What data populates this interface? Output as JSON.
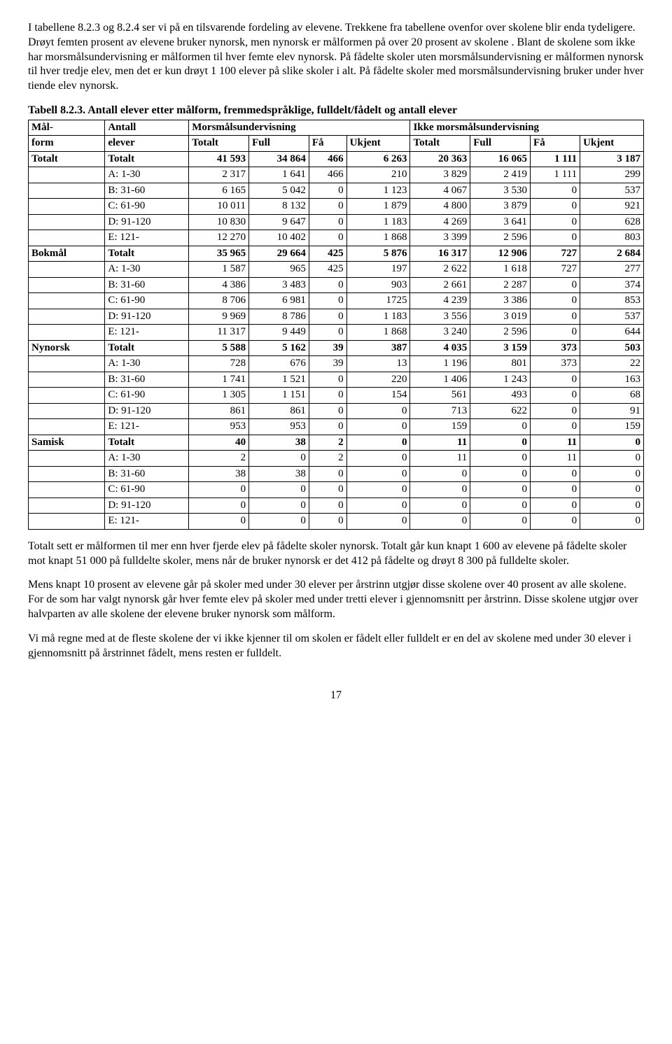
{
  "para1": "I tabellene  8.2.3 og 8.2.4 ser vi på en tilsvarende fordeling av elevene. Trekkene fra tabellene ovenfor over skolene blir enda tydeligere. Drøyt femten prosent av elevene bruker nynorsk, men nynorsk er målformen på over 20 prosent av skolene . Blant de skolene som ikke har morsmålsundervisning er målformen til hver femte elev nynorsk. På fådelte skoler uten morsmålsundervisning er målformen nynorsk til hver tredje elev, men det er kun drøyt 1 100 elever på slike skoler i alt. På fådelte skoler med morsmålsundervisning bruker under hver tiende elev nynorsk.",
  "tableCaption": "Tabell 8.2.3. Antall elever etter målform, fremmedspråklige, fulldelt/fådelt og antall elever",
  "header": {
    "mal": "Mål-",
    "antall": "Antall",
    "mors": "Morsmålsundervisning",
    "ikke": "Ikke morsmålsundervisning",
    "form": "form",
    "elever": "elever",
    "totalt": "Totalt",
    "full": "Full",
    "fa": "Få",
    "ukjent": "Ukjent"
  },
  "groups": [
    {
      "label": "Totalt",
      "rows": [
        {
          "r": "Totalt",
          "c": [
            "41 593",
            "34 864",
            "466",
            "6 263",
            "20 363",
            "16 065",
            "1 111",
            "3 187"
          ]
        },
        {
          "r": "A: 1-30",
          "c": [
            "2 317",
            "1 641",
            "466",
            "210",
            "3 829",
            "2 419",
            "1 111",
            "299"
          ]
        },
        {
          "r": "B: 31-60",
          "c": [
            "6 165",
            "5 042",
            "0",
            "1 123",
            "4 067",
            "3 530",
            "0",
            "537"
          ]
        },
        {
          "r": "C: 61-90",
          "c": [
            "10 011",
            "8 132",
            "0",
            "1 879",
            "4 800",
            "3 879",
            "0",
            "921"
          ]
        },
        {
          "r": "D: 91-120",
          "c": [
            "10 830",
            "9 647",
            "0",
            "1 183",
            "4 269",
            "3 641",
            "0",
            "628"
          ]
        },
        {
          "r": "E: 121-",
          "c": [
            "12 270",
            "10 402",
            "0",
            "1 868",
            "3 399",
            "2 596",
            "0",
            "803"
          ]
        }
      ]
    },
    {
      "label": "Bokmål",
      "rows": [
        {
          "r": "Totalt",
          "c": [
            "35 965",
            "29 664",
            "425",
            "5 876",
            "16 317",
            "12 906",
            "727",
            "2 684"
          ]
        },
        {
          "r": "A: 1-30",
          "c": [
            "1 587",
            "965",
            "425",
            "197",
            "2 622",
            "1 618",
            "727",
            "277"
          ]
        },
        {
          "r": "B: 31-60",
          "c": [
            "4 386",
            "3 483",
            "0",
            "903",
            "2 661",
            "2 287",
            "0",
            "374"
          ]
        },
        {
          "r": "C: 61-90",
          "c": [
            "8 706",
            "6 981",
            "0",
            "1725",
            "4 239",
            "3 386",
            "0",
            "853"
          ]
        },
        {
          "r": "D: 91-120",
          "c": [
            "9 969",
            "8 786",
            "0",
            "1 183",
            "3 556",
            "3 019",
            "0",
            "537"
          ]
        },
        {
          "r": "E: 121-",
          "c": [
            "11 317",
            "9 449",
            "0",
            "1 868",
            "3 240",
            "2 596",
            "0",
            "644"
          ]
        }
      ]
    },
    {
      "label": "Nynorsk",
      "rows": [
        {
          "r": "Totalt",
          "c": [
            "5 588",
            "5 162",
            "39",
            "387",
            "4 035",
            "3 159",
            "373",
            "503"
          ]
        },
        {
          "r": "A: 1-30",
          "c": [
            "728",
            "676",
            "39",
            "13",
            "1 196",
            "801",
            "373",
            "22"
          ]
        },
        {
          "r": "B: 31-60",
          "c": [
            "1 741",
            "1 521",
            "0",
            "220",
            "1 406",
            "1 243",
            "0",
            "163"
          ]
        },
        {
          "r": "C: 61-90",
          "c": [
            "1 305",
            "1 151",
            "0",
            "154",
            "561",
            "493",
            "0",
            "68"
          ]
        },
        {
          "r": "D: 91-120",
          "c": [
            "861",
            "861",
            "0",
            "0",
            "713",
            "622",
            "0",
            "91"
          ]
        },
        {
          "r": "E: 121-",
          "c": [
            "953",
            "953",
            "0",
            "0",
            "159",
            "0",
            "0",
            "159"
          ]
        }
      ]
    },
    {
      "label": "Samisk",
      "rows": [
        {
          "r": "Totalt",
          "c": [
            "40",
            "38",
            "2",
            "0",
            "11",
            "0",
            "11",
            "0"
          ]
        },
        {
          "r": "A: 1-30",
          "c": [
            "2",
            "0",
            "2",
            "0",
            "11",
            "0",
            "11",
            "0"
          ]
        },
        {
          "r": "B: 31-60",
          "c": [
            "38",
            "38",
            "0",
            "0",
            "0",
            "0",
            "0",
            "0"
          ]
        },
        {
          "r": "C: 61-90",
          "c": [
            "0",
            "0",
            "0",
            "0",
            "0",
            "0",
            "0",
            "0"
          ]
        },
        {
          "r": "D: 91-120",
          "c": [
            "0",
            "0",
            "0",
            "0",
            "0",
            "0",
            "0",
            "0"
          ]
        },
        {
          "r": "E: 121-",
          "c": [
            "0",
            "0",
            "0",
            "0",
            "0",
            "0",
            "0",
            "0"
          ]
        }
      ]
    }
  ],
  "para2": "Totalt sett er målformen til mer enn hver fjerde elev på fådelte skoler nynorsk. Totalt går kun knapt 1 600 av elevene på fådelte skoler mot knapt 51 000 på fulldelte skoler, mens når de bruker nynorsk er det 412 på fådelte og drøyt 8 300 på fulldelte skoler.",
  "para3": "Mens knapt 10 prosent av elevene går på skoler med under 30 elever per årstrinn utgjør disse skolene over 40 prosent av alle skolene. For de som har valgt nynorsk går hver femte elev på skoler med under tretti elever i gjennomsnitt per årstrinn. Disse skolene utgjør over halvparten av alle skolene der elevene bruker nynorsk som målform.",
  "para4": "Vi må regne med at de fleste skolene der vi ikke kjenner til om skolen er fådelt eller fulldelt er en del av skolene med under 30 elever i gjennomsnitt på årstrinnet fådelt, mens resten er fulldelt.",
  "pageNumber": "17",
  "boldLabels": {
    "Totalt": true,
    "Bokmål": true,
    "Nynorsk": true,
    "Samisk": true
  }
}
